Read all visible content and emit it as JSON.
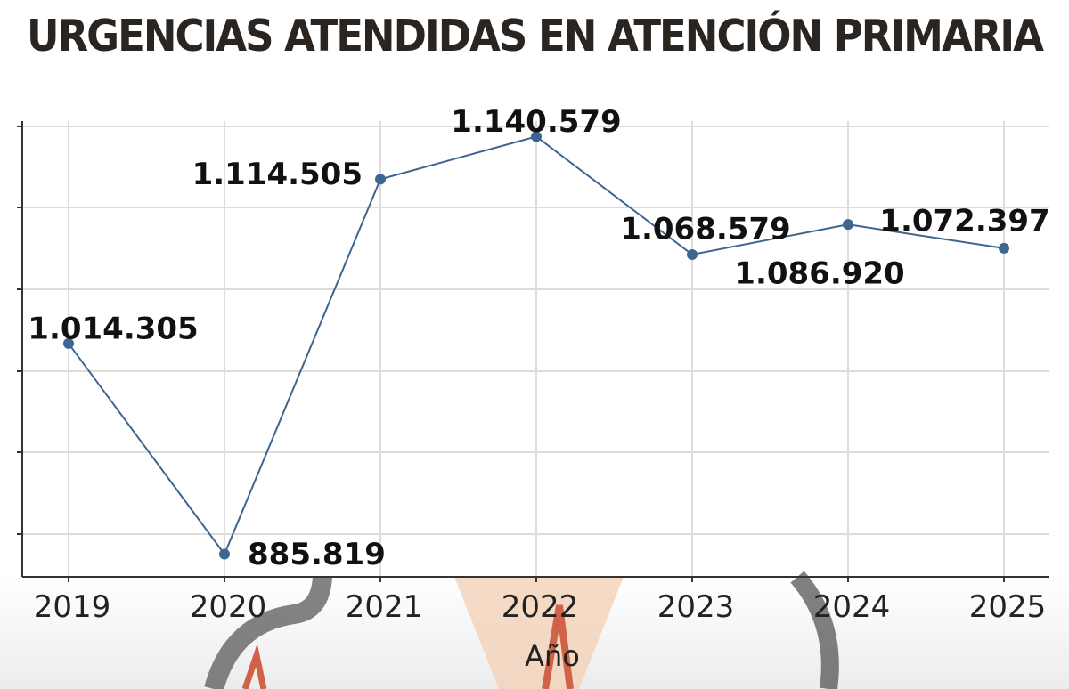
{
  "title": "URGENCIAS ATENDIDAS EN ATENCIÓN PRIMARIA",
  "chart_data": {
    "type": "line",
    "title": "URGENCIAS ATENDIDAS EN ATENCIÓN PRIMARIA",
    "xlabel": "Año",
    "ylabel": "",
    "categories": [
      "2019",
      "2020",
      "2021",
      "2022",
      "2023",
      "2024",
      "2025"
    ],
    "series": [
      {
        "values": [
          1014305,
          885819,
          1114505,
          1140579,
          1068579,
          1086920,
          1072397
        ]
      }
    ],
    "data_labels": [
      "1.014.305",
      "885.819",
      "1.114.505",
      "1.140.579",
      "1.068.579",
      "1.086.920",
      "1.072.397"
    ],
    "ylim": [
      872000,
      1150000
    ],
    "grid": true,
    "legend": "none",
    "line_color": "#3e6590",
    "marker_color": "#3e6590"
  }
}
